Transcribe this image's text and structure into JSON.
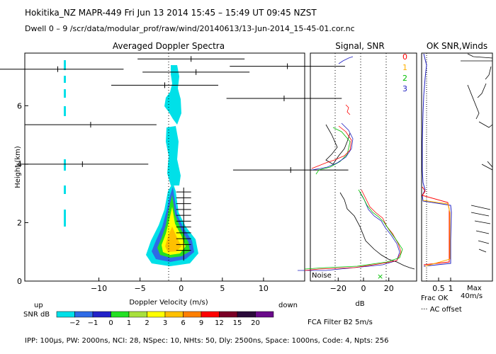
{
  "header": {
    "line1": "Hokitika_NZ  MAPR-449  Fri Jun 13 2014 15:45 – 15:49 UT 09:45 NZST",
    "line2": "Dwell  0 – 9  /scr/data/modular_prof/raw/wind/20140613/13-Jun-2014_15-45-01.cor.nc"
  },
  "footer": "IPP: 100µs,  PW: 2000ns,  NCI:  28,  NSpec: 10, NHts: 50,  Dly: 2500ns,  Space: 1000ns,  Code: 4,  Npts: 256",
  "colors": {
    "snr_scale": [
      "#00e0e8",
      "#2e6be6",
      "#2222c8",
      "#23e023",
      "#a8e03c",
      "#ffff00",
      "#ffc000",
      "#ff7f00",
      "#ff0000",
      "#7a0026",
      "#2a0a3a",
      "#6a0a8a"
    ],
    "ok_lines": [
      "#ff0000",
      "#ffb000",
      "#00c000",
      "#2020c0"
    ]
  },
  "chart_data": [
    {
      "type": "spectra",
      "title": "Averaged Doppler Spectra",
      "xlabel": "Doppler Velocity (m/s)",
      "ylabel": "Height (km)",
      "xlim": [
        -19,
        15
      ],
      "ylim": [
        0,
        7.8
      ],
      "xticks": [
        -10,
        -5,
        0,
        5,
        10
      ],
      "yticks": [
        0,
        2,
        4,
        6
      ],
      "dir_left": "up",
      "dir_right": "down",
      "snr_label": "SNR dB",
      "snr_ticks": [
        "−2",
        "−1",
        "0",
        "1",
        "2",
        "3",
        "6",
        "9",
        "12",
        "15",
        "20"
      ],
      "moment_bars": [
        {
          "h": 7.6,
          "v": 1.2,
          "w": 6.5
        },
        {
          "h": 7.35,
          "v": 12.9,
          "w": 7.0
        },
        {
          "h": 7.25,
          "v": -15.0,
          "w": 8.0
        },
        {
          "h": 7.15,
          "v": 1.8,
          "w": 6.5
        },
        {
          "h": 6.7,
          "v": -2.0,
          "w": 6.5
        },
        {
          "h": 6.25,
          "v": 12.5,
          "w": 7.0
        },
        {
          "h": 5.35,
          "v": -11.0,
          "w": 8.0
        },
        {
          "h": 4.0,
          "v": -12.0,
          "w": 8.0
        },
        {
          "h": 3.8,
          "v": 13.3,
          "w": 7.0
        }
      ],
      "core_bars": [
        3.05,
        2.85,
        2.65,
        2.45,
        2.25,
        2.05,
        1.85,
        1.65,
        1.45,
        1.25,
        1.05
      ]
    },
    {
      "type": "line",
      "title": "Signal, SNR",
      "xlabel": "dB",
      "xlim": [
        -42,
        42
      ],
      "xticks": [
        -20,
        0,
        20
      ],
      "noise_label": "Noise",
      "filter_label": "FCA Filter B2  5m/s"
    },
    {
      "type": "line",
      "title": "OK SNR,Winds",
      "xlabel": "Frac OK",
      "xticks": [
        0.5,
        1
      ],
      "legend": [
        "0",
        "1",
        "2",
        "3"
      ],
      "ac_offset_label": "AC offset",
      "max_label": "Max",
      "max_value": "40m/s"
    }
  ]
}
